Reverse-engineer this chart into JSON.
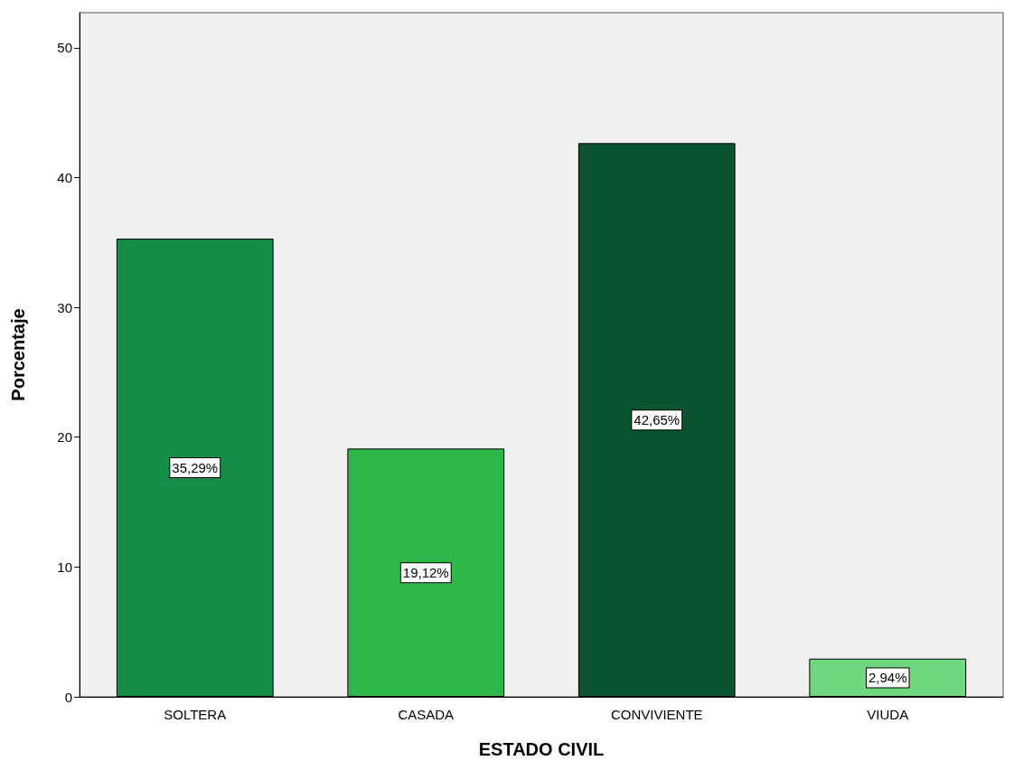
{
  "chart_data": {
    "type": "bar",
    "xlabel": "ESTADO CIVIL",
    "ylabel": "Porcentaje",
    "categories": [
      "SOLTERA",
      "CASADA",
      "CONVIVIENTE",
      "VIUDA"
    ],
    "values": [
      35.29,
      19.12,
      42.65,
      2.94
    ],
    "colors": [
      "#138d48",
      "#2fb84a",
      "#0b5430",
      "#6fd87f"
    ],
    "value_labels": [
      "35,29%",
      "19,12%",
      "42,65%",
      "2,94%"
    ],
    "ylim": [
      0,
      52.7
    ],
    "yticks": [
      0,
      10,
      20,
      30,
      40,
      50
    ],
    "grid": false
  }
}
